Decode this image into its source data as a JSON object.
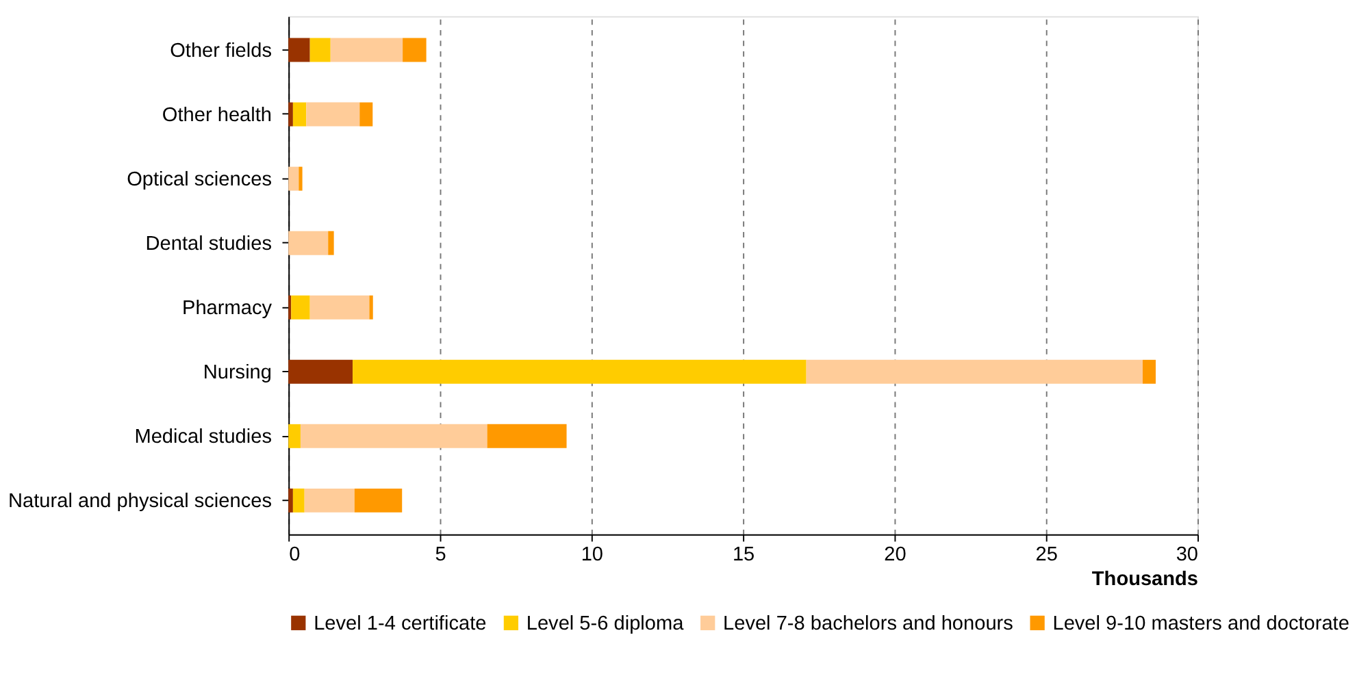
{
  "chart_data": {
    "type": "bar",
    "orientation": "horizontal",
    "stacked": true,
    "categories": [
      "Other fields",
      "Other health",
      "Optical sciences",
      "Dental studies",
      "Pharmacy",
      "Nursing",
      "Medical studies",
      "Natural and physical sciences"
    ],
    "series": [
      {
        "name": "Level 1-4 certificate",
        "color": "#993300",
        "values": [
          0.71,
          0.15,
          0,
          0,
          0.09,
          2.12,
          0,
          0.15
        ]
      },
      {
        "name": "Level 5-6 diploma",
        "color": "#ffcc00",
        "values": [
          0.68,
          0.44,
          0,
          0,
          0.62,
          14.97,
          0.4,
          0.38
        ]
      },
      {
        "name": "Level 7-8 bachelors and honours",
        "color": "#ffcc99",
        "values": [
          2.38,
          1.76,
          0.34,
          1.31,
          1.96,
          11.1,
          6.16,
          1.65
        ]
      },
      {
        "name": "Level 9-10 masters and doctorate",
        "color": "#ff9900",
        "values": [
          0.78,
          0.43,
          0.12,
          0.19,
          0.12,
          0.43,
          2.62,
          1.57
        ]
      }
    ],
    "xlabel": "Thousands",
    "xlim": [
      0,
      30
    ],
    "xticks": [
      0,
      5,
      10,
      15,
      20,
      25,
      30
    ],
    "grid": "x",
    "line_style": "dashed",
    "legend": "bottom"
  }
}
